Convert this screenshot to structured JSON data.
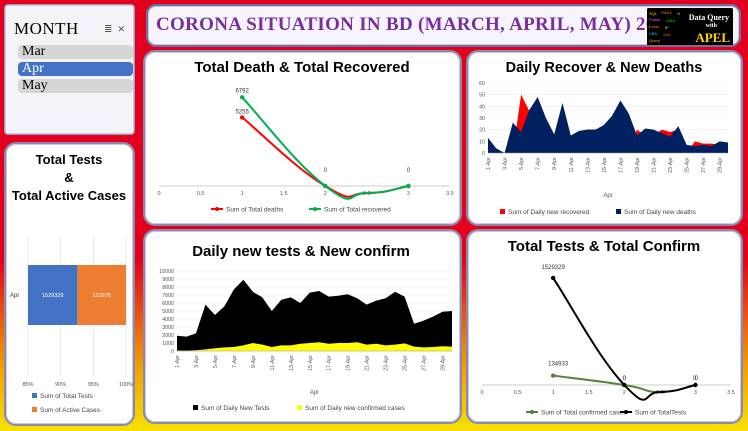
{
  "header": {
    "title": "CORONA SITUATION IN BD (MARCH, APRIL, MAY) 2020",
    "logo": {
      "line1": "Data Query",
      "line2": "with",
      "line3": "APEL"
    }
  },
  "slicer": {
    "header": "MONTH",
    "icons": "≣ ⨯",
    "items": [
      {
        "label": "Mar",
        "selected": false
      },
      {
        "label": "Apr",
        "selected": true
      },
      {
        "label": "May",
        "selected": false
      }
    ]
  },
  "colors": {
    "deaths_red": "#ff0000",
    "recovered_green": "#00b050",
    "new_deaths_navy": "#002060",
    "tests_blue": "#4472c4",
    "active_orange": "#ed7d31",
    "new_tests_black": "#000000",
    "new_confirmed_yellow": "#ffff00",
    "confirmed_olive": "#548235",
    "title_purple": "#7a2d9b"
  },
  "chart_data": [
    {
      "id": "tests_active",
      "type": "bar",
      "orientation": "horizontal",
      "stacking": "percent",
      "title": "Total Tests & Total Active Cases",
      "title_lines": [
        "Total Tests",
        "&",
        "Total Active Cases"
      ],
      "categories": [
        "Apr"
      ],
      "series": [
        {
          "name": "Sum of Total Tests",
          "values": [
            1529329
          ]
        },
        {
          "name": "Sum of Active Cases",
          "values": [
            122976
          ]
        }
      ],
      "data_labels": [
        "1529329",
        "122976"
      ],
      "xlim": [
        0.85,
        1.0
      ],
      "x_ticks": [
        "85%",
        "90%",
        "95%",
        "100%"
      ],
      "legend": "bottom"
    },
    {
      "id": "death_recovered",
      "type": "line",
      "smooth": true,
      "title": "Total Death & Total Recovered",
      "x_ticks": [
        "0",
        "0.5",
        "1",
        "1.5",
        "2",
        "2.5",
        "3",
        "3.5"
      ],
      "xlim": [
        0,
        3.5
      ],
      "ylim": [
        0,
        7200
      ],
      "series": [
        {
          "name": "Sum of Total deaths",
          "x": [
            1,
            2,
            3
          ],
          "values": [
            5255,
            0,
            0
          ]
        },
        {
          "name": "Sum of Total recovered",
          "x": [
            1,
            2,
            3
          ],
          "values": [
            6792,
            0,
            0
          ]
        }
      ],
      "data_labels": [
        "6792",
        "5255",
        "0",
        "0"
      ],
      "legend": "bottom"
    },
    {
      "id": "recover_deaths",
      "type": "area",
      "title": "Daily Recover & New Deaths",
      "xlabel": "Apr",
      "ylim": [
        0,
        60
      ],
      "y_ticks": [
        "0",
        "10",
        "20",
        "30",
        "40",
        "50",
        "60"
      ],
      "x_ticks": [
        "1-Apr",
        "3-Apr",
        "5-Apr",
        "7-Apr",
        "9-Apr",
        "11-Apr",
        "13-Apr",
        "15-Apr",
        "17-Apr",
        "19-Apr",
        "21-Apr",
        "23-Apr",
        "25-Apr",
        "27-Apr",
        "29-Apr"
      ],
      "x": [
        "1-Apr",
        "2-Apr",
        "3-Apr",
        "4-Apr",
        "5-Apr",
        "6-Apr",
        "7-Apr",
        "8-Apr",
        "9-Apr",
        "10-Apr",
        "11-Apr",
        "12-Apr",
        "13-Apr",
        "14-Apr",
        "15-Apr",
        "16-Apr",
        "17-Apr",
        "18-Apr",
        "19-Apr",
        "20-Apr",
        "21-Apr",
        "22-Apr",
        "23-Apr",
        "24-Apr",
        "25-Apr",
        "26-Apr",
        "27-Apr",
        "28-Apr",
        "29-Apr",
        "30-Apr"
      ],
      "series": [
        {
          "name": "Sum of Daily new recovered",
          "values": [
            0,
            0,
            0,
            0,
            50,
            36,
            10,
            0,
            12,
            0,
            2,
            12,
            20,
            20,
            15,
            22,
            12,
            0,
            20,
            15,
            15,
            20,
            18,
            20,
            0,
            10,
            8,
            8,
            7,
            8
          ]
        },
        {
          "name": "Sum of Daily new deaths",
          "values": [
            13,
            4,
            0,
            26,
            18,
            37,
            48,
            30,
            16,
            43,
            15,
            19,
            20,
            20,
            24,
            32,
            45,
            34,
            15,
            21,
            20,
            17,
            14,
            23,
            7,
            6,
            7,
            6,
            10,
            9
          ]
        }
      ],
      "legend": "bottom"
    },
    {
      "id": "tests_confirm_daily",
      "type": "area",
      "title": "Daily new tests & New confirm",
      "xlabel": "Apr",
      "ylim": [
        0,
        10000
      ],
      "y_ticks": [
        "0",
        "1000",
        "2000",
        "3000",
        "4000",
        "5000",
        "6000",
        "7000",
        "8000",
        "9000",
        "10000"
      ],
      "x_ticks": [
        "1-Apr",
        "3-Apr",
        "5-Apr",
        "7-Apr",
        "9-Apr",
        "11-Apr",
        "13-Apr",
        "15-Apr",
        "17-Apr",
        "19-Apr",
        "21-Apr",
        "23-Apr",
        "25-Apr",
        "27-Apr",
        "29-Apr"
      ],
      "x": [
        "1-Apr",
        "2-Apr",
        "3-Apr",
        "4-Apr",
        "5-Apr",
        "6-Apr",
        "7-Apr",
        "8-Apr",
        "9-Apr",
        "10-Apr",
        "11-Apr",
        "12-Apr",
        "13-Apr",
        "14-Apr",
        "15-Apr",
        "16-Apr",
        "17-Apr",
        "18-Apr",
        "19-Apr",
        "20-Apr",
        "21-Apr",
        "22-Apr",
        "23-Apr",
        "24-Apr",
        "25-Apr",
        "26-Apr",
        "27-Apr",
        "28-Apr",
        "29-Apr",
        "30-Apr"
      ],
      "series": [
        {
          "name": "Sum of Daily New Tests",
          "values": [
            1900,
            1800,
            2200,
            5800,
            4500,
            5600,
            7700,
            8900,
            7400,
            6700,
            5000,
            6400,
            6700,
            6000,
            7300,
            7500,
            6800,
            6900,
            7100,
            6600,
            5800,
            6300,
            6600,
            7400,
            6800,
            3400,
            3800,
            4300,
            4900,
            5000
          ]
        },
        {
          "name": "Sum of Daily new confirmed cases",
          "values": [
            60,
            50,
            100,
            200,
            350,
            450,
            500,
            700,
            1000,
            800,
            500,
            700,
            700,
            900,
            1000,
            1100,
            900,
            1000,
            1000,
            1100,
            800,
            900,
            700,
            800,
            950,
            550,
            450,
            500,
            600,
            550
          ]
        }
      ],
      "legend": "bottom"
    },
    {
      "id": "tests_confirm_total",
      "type": "line",
      "smooth": true,
      "title": "Total Tests & Total Confirm",
      "x_ticks": [
        "0",
        "0.5",
        "1",
        "1.5",
        "2",
        "2.5",
        "3",
        "3.5"
      ],
      "xlim": [
        0,
        3.5
      ],
      "ylim": [
        0,
        1700000
      ],
      "series": [
        {
          "name": "Sum of Total confirmed cases",
          "x": [
            1,
            2,
            3
          ],
          "values": [
            134933,
            0,
            0
          ]
        },
        {
          "name": "Sum of TotalTests",
          "x": [
            1,
            2,
            3
          ],
          "values": [
            1529329,
            0,
            0
          ]
        }
      ],
      "data_labels": [
        "1529329",
        "134933",
        "0",
        "0",
        "0",
        "0"
      ],
      "legend": "bottom"
    }
  ]
}
